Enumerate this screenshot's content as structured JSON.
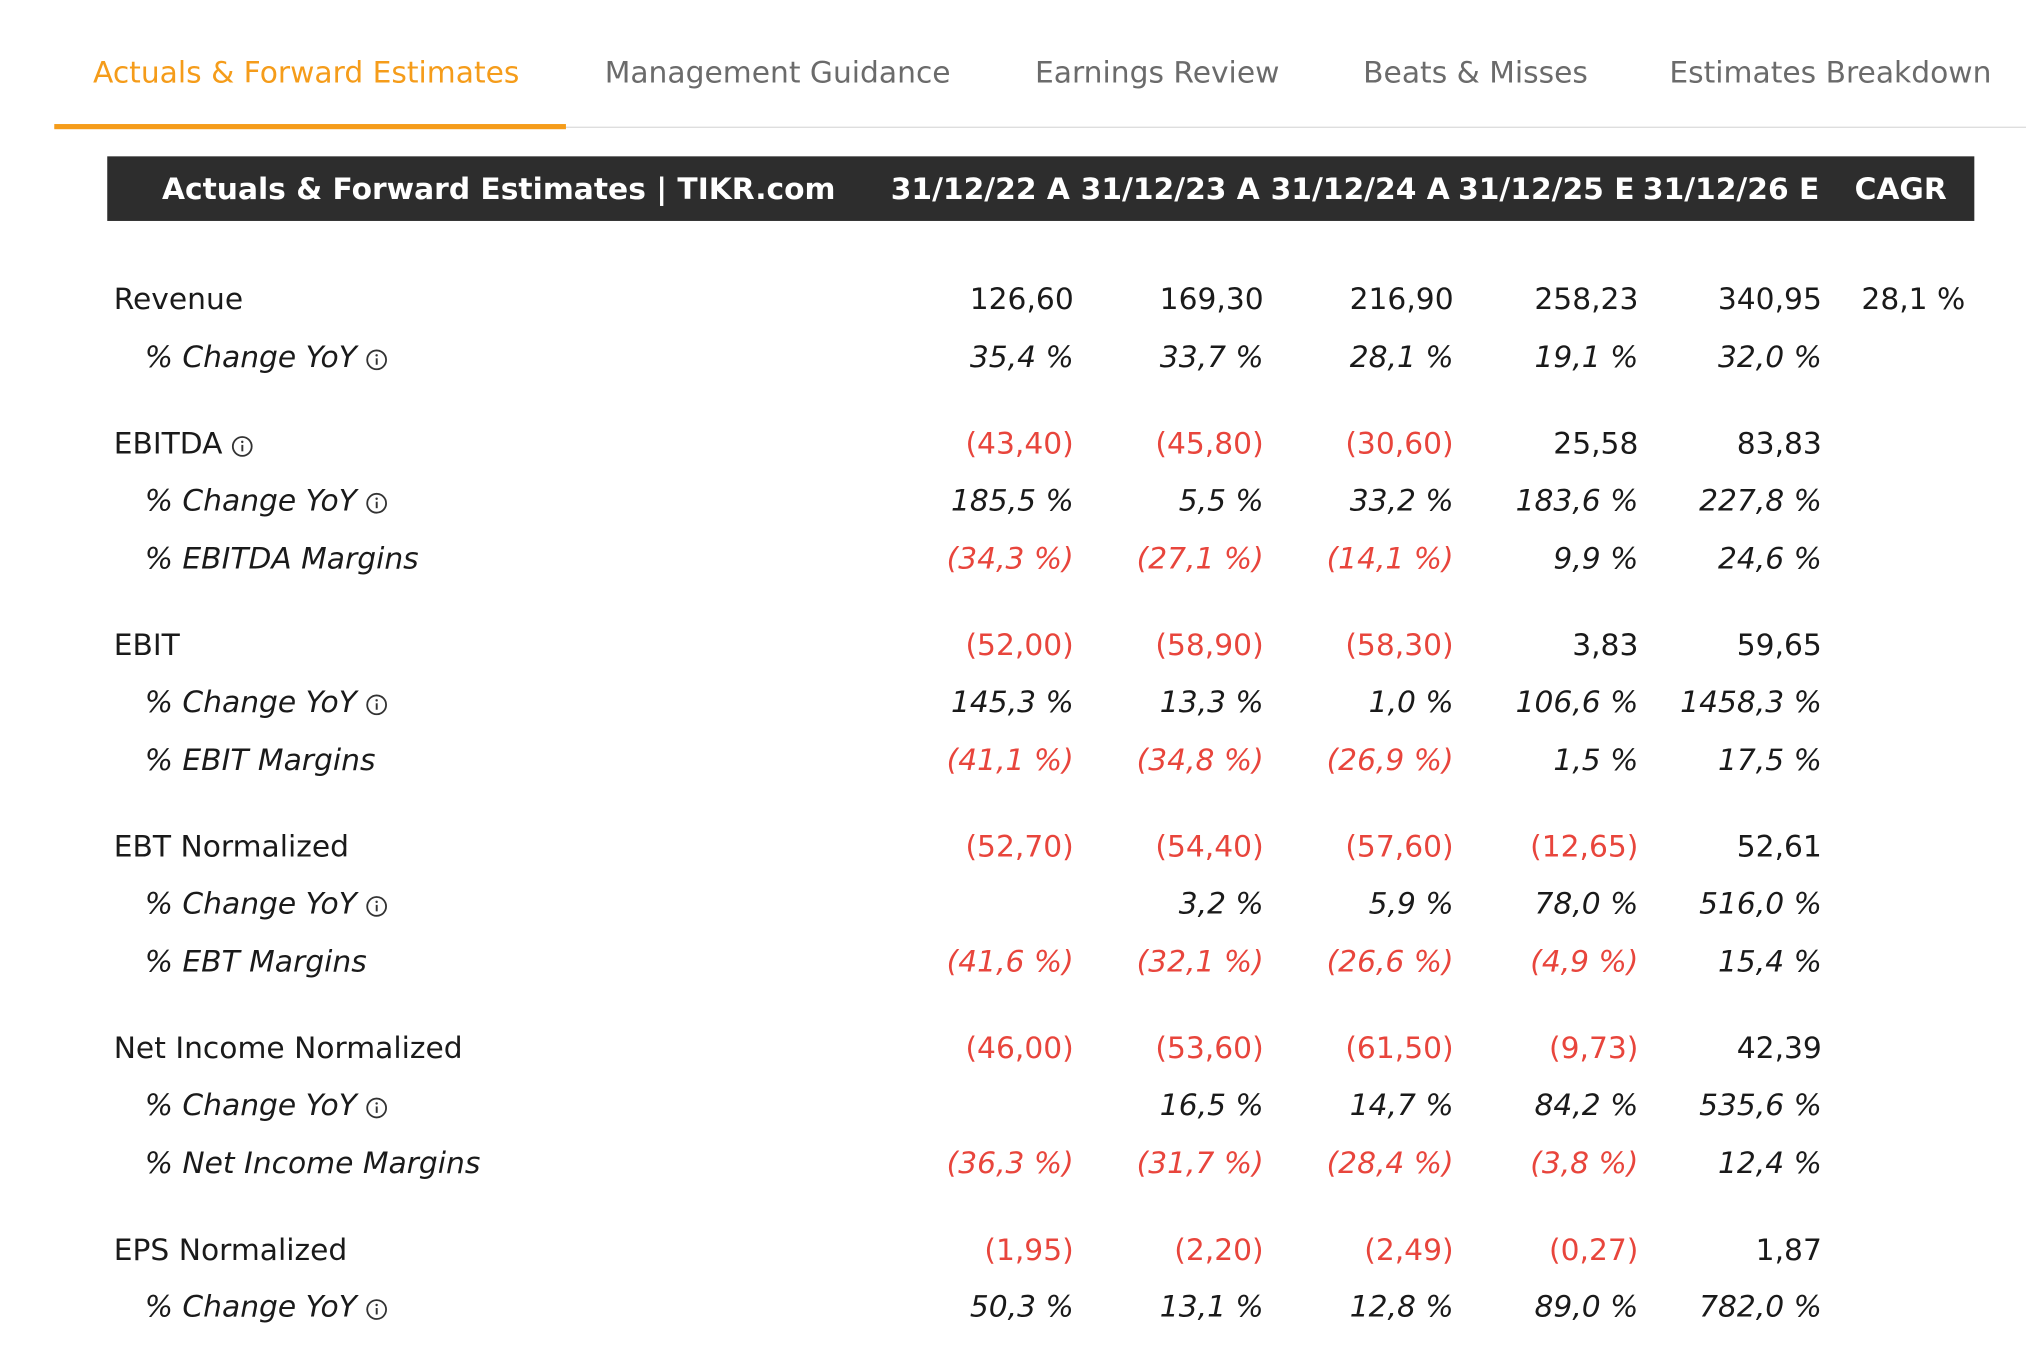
{
  "tabs": [
    "Actuals & Forward Estimates",
    "Management Guidance",
    "Earnings Review",
    "Beats & Misses",
    "Estimates Breakdown"
  ],
  "active_tab": 0,
  "table": {
    "title": "Actuals & Forward Estimates | TIKR.com",
    "columns": [
      "31/12/22 A",
      "31/12/23 A",
      "31/12/24 A",
      "31/12/25 E",
      "31/12/26 E",
      "CAGR"
    ],
    "sections": [
      {
        "rows": [
          {
            "label": "Revenue",
            "values": [
              "126,60",
              "169,30",
              "216,90",
              "258,23",
              "340,95",
              "28,1 %"
            ],
            "info": false,
            "italic": false
          },
          {
            "label": "% Change YoY",
            "values": [
              "35,4 %",
              "33,7 %",
              "28,1 %",
              "19,1 %",
              "32,0 %",
              null
            ],
            "info": true,
            "italic": true
          }
        ]
      },
      {
        "rows": [
          {
            "label": "EBITDA",
            "values": [
              "(43,40)",
              "(45,80)",
              "(30,60)",
              "25,58",
              "83,83",
              null
            ],
            "info": true,
            "italic": false
          },
          {
            "label": "% Change YoY",
            "values": [
              "185,5 %",
              "5,5 %",
              "33,2 %",
              "183,6 %",
              "227,8 %",
              null
            ],
            "info": true,
            "italic": true
          },
          {
            "label": "% EBITDA Margins",
            "values": [
              "(34,3 %)",
              "(27,1 %)",
              "(14,1 %)",
              "9,9 %",
              "24,6 %",
              null
            ],
            "info": false,
            "italic": true
          }
        ]
      },
      {
        "rows": [
          {
            "label": "EBIT",
            "values": [
              "(52,00)",
              "(58,90)",
              "(58,30)",
              "3,83",
              "59,65",
              null
            ],
            "info": false,
            "italic": false
          },
          {
            "label": "% Change YoY",
            "values": [
              "145,3 %",
              "13,3 %",
              "1,0 %",
              "106,6 %",
              "1458,3 %",
              null
            ],
            "info": true,
            "italic": true
          },
          {
            "label": "% EBIT Margins",
            "values": [
              "(41,1 %)",
              "(34,8 %)",
              "(26,9 %)",
              "1,5 %",
              "17,5 %",
              null
            ],
            "info": false,
            "italic": true
          }
        ]
      },
      {
        "rows": [
          {
            "label": "EBT Normalized",
            "values": [
              "(52,70)",
              "(54,40)",
              "(57,60)",
              "(12,65)",
              "52,61",
              null
            ],
            "info": false,
            "italic": false
          },
          {
            "label": "% Change YoY",
            "values": [
              null,
              "3,2 %",
              "5,9 %",
              "78,0 %",
              "516,0 %",
              null
            ],
            "info": true,
            "italic": true
          },
          {
            "label": "% EBT Margins",
            "values": [
              "(41,6 %)",
              "(32,1 %)",
              "(26,6 %)",
              "(4,9 %)",
              "15,4 %",
              null
            ],
            "info": false,
            "italic": true
          }
        ]
      },
      {
        "rows": [
          {
            "label": "Net Income Normalized",
            "values": [
              "(46,00)",
              "(53,60)",
              "(61,50)",
              "(9,73)",
              "42,39",
              null
            ],
            "info": false,
            "italic": false
          },
          {
            "label": "% Change YoY",
            "values": [
              null,
              "16,5 %",
              "14,7 %",
              "84,2 %",
              "535,6 %",
              null
            ],
            "info": true,
            "italic": true
          },
          {
            "label": "% Net Income Margins",
            "values": [
              "(36,3 %)",
              "(31,7 %)",
              "(28,4 %)",
              "(3,8 %)",
              "12,4 %",
              null
            ],
            "info": false,
            "italic": true
          }
        ]
      },
      {
        "rows": [
          {
            "label": "EPS Normalized",
            "values": [
              "(1,95)",
              "(2,20)",
              "(2,49)",
              "(0,27)",
              "1,87",
              null
            ],
            "info": false,
            "italic": false
          },
          {
            "label": "% Change YoY",
            "values": [
              "50,3 %",
              "13,1 %",
              "12,8 %",
              "89,0 %",
              "782,0 %",
              null
            ],
            "info": true,
            "italic": true
          }
        ]
      }
    ]
  }
}
